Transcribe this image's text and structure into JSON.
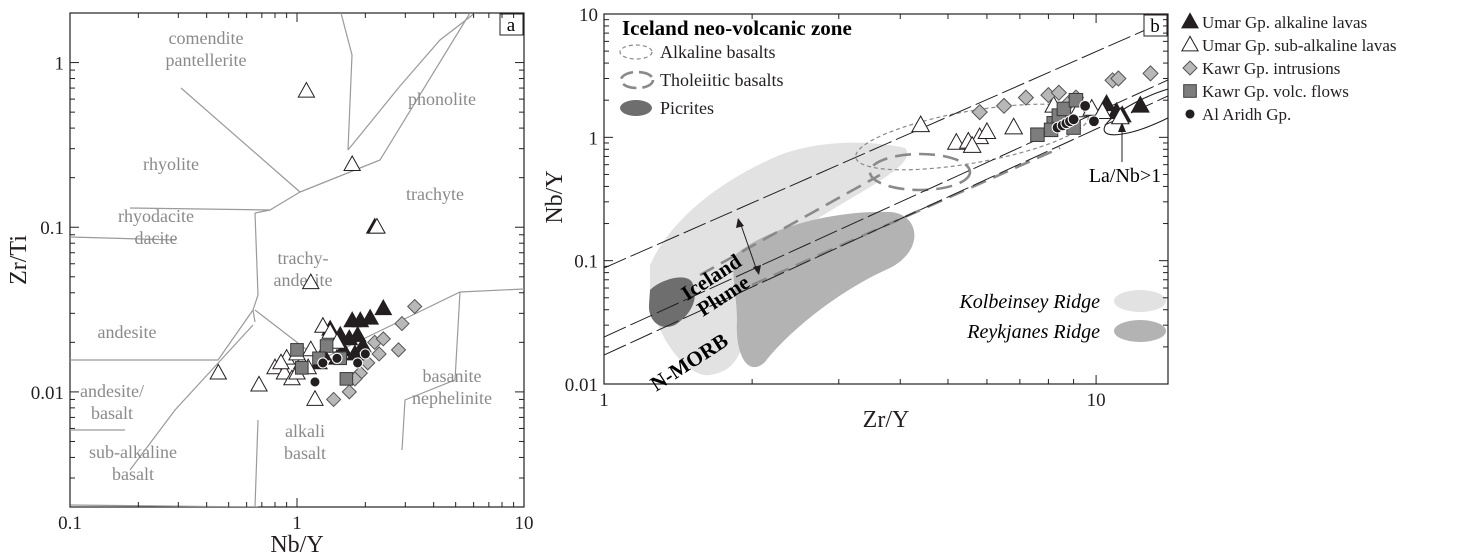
{
  "chart_data": [
    {
      "type": "scatter",
      "panel": "a",
      "xlabel": "Nb/Y",
      "ylabel": "Zr/Ti",
      "xscale": "log",
      "yscale": "log",
      "xlim": [
        0.1,
        10
      ],
      "ylim": [
        0.002,
        2
      ],
      "x_ticks": [
        "0.1",
        "1",
        "10"
      ],
      "y_ticks": [
        "0.01",
        "0.1",
        "1"
      ],
      "fields": [
        {
          "lines": [
            "comendite",
            "pantellerite"
          ]
        },
        {
          "lines": [
            "phonolite"
          ]
        },
        {
          "lines": [
            "rhyolite"
          ]
        },
        {
          "lines": [
            "trachyte"
          ]
        },
        {
          "lines": [
            "rhyodacite",
            "dacite"
          ]
        },
        {
          "lines": [
            "trachy-",
            "andesite"
          ]
        },
        {
          "lines": [
            "andesite"
          ]
        },
        {
          "lines": [
            "basanite",
            "nephelinite"
          ]
        },
        {
          "lines": [
            "andesite/",
            "basalt"
          ]
        },
        {
          "lines": [
            "alkali",
            "basalt"
          ]
        },
        {
          "lines": [
            "sub-alkaline",
            "basalt"
          ]
        }
      ],
      "series": [
        {
          "name": "Umar Gp. alkaline lavas",
          "marker": "triangle-filled",
          "points": [
            [
              2.2,
              0.1
            ],
            [
              1.75,
              0.027
            ],
            [
              1.9,
              0.027
            ],
            [
              2.1,
              0.028
            ],
            [
              2.4,
              0.032
            ],
            [
              1.55,
              0.022
            ],
            [
              1.7,
              0.021
            ],
            [
              1.85,
              0.022
            ],
            [
              1.4,
              0.024
            ],
            [
              1.6,
              0.018
            ],
            [
              1.8,
              0.017
            ],
            [
              1.95,
              0.019
            ],
            [
              1.3,
              0.017
            ],
            [
              1.5,
              0.016
            ],
            [
              1.25,
              0.015
            ]
          ]
        },
        {
          "name": "Umar Gp. sub-alkaline lavas",
          "marker": "triangle-open",
          "points": [
            [
              1.1,
              0.67
            ],
            [
              1.75,
              0.24
            ],
            [
              2.25,
              0.1
            ],
            [
              1.15,
              0.046
            ],
            [
              0.45,
              0.013
            ],
            [
              0.68,
              0.011
            ],
            [
              1.2,
              0.009
            ],
            [
              0.8,
              0.014
            ],
            [
              0.88,
              0.013
            ],
            [
              0.95,
              0.012
            ],
            [
              1.0,
              0.013
            ],
            [
              1.05,
              0.015
            ],
            [
              1.12,
              0.014
            ],
            [
              0.9,
              0.016
            ],
            [
              0.85,
              0.015
            ],
            [
              1.0,
              0.017
            ],
            [
              1.3,
              0.025
            ],
            [
              1.4,
              0.023
            ],
            [
              1.15,
              0.018
            ],
            [
              1.5,
              0.02
            ]
          ]
        },
        {
          "name": "Kawr Gp. intrusions",
          "marker": "diamond",
          "points": [
            [
              3.3,
              0.033
            ],
            [
              2.9,
              0.026
            ],
            [
              2.8,
              0.018
            ],
            [
              2.2,
              0.02
            ],
            [
              2.05,
              0.015
            ],
            [
              1.9,
              0.013
            ],
            [
              1.8,
              0.012
            ],
            [
              1.7,
              0.01
            ],
            [
              1.45,
              0.009
            ],
            [
              2.4,
              0.021
            ],
            [
              2.3,
              0.017
            ]
          ]
        },
        {
          "name": "Kawr Gp. volc. flows",
          "marker": "square",
          "points": [
            [
              1.35,
              0.019
            ],
            [
              1.55,
              0.016
            ],
            [
              1.05,
              0.014
            ],
            [
              1.0,
              0.018
            ],
            [
              1.65,
              0.012
            ],
            [
              1.25,
              0.016
            ]
          ]
        },
        {
          "name": "Al Aridh Gp.",
          "marker": "circle",
          "points": [
            [
              1.2,
              0.0115
            ],
            [
              1.3,
              0.015
            ],
            [
              2.0,
              0.017
            ],
            [
              1.5,
              0.016
            ],
            [
              1.85,
              0.015
            ]
          ]
        }
      ]
    },
    {
      "type": "scatter",
      "panel": "b",
      "xlabel": "Zr/Y",
      "ylabel": "Nb/Y",
      "xscale": "log",
      "yscale": "log",
      "xlim": [
        1,
        14
      ],
      "ylim": [
        0.01,
        10
      ],
      "x_ticks": [
        "1",
        "10"
      ],
      "y_ticks": [
        "0.01",
        "0.1",
        "1",
        "10"
      ],
      "inset_title": "Iceland neo-volcanic zone",
      "inset_legend": [
        "Alkaline basalts",
        "Tholeiitic basalts",
        "Picrites"
      ],
      "annotations": [
        "La/Nb>1",
        "Iceland",
        "Plume",
        "N-MORB"
      ],
      "field_legend": [
        "Kolbeinsey Ridge",
        "Reykjanes Ridge"
      ],
      "series": [
        {
          "name": "Umar Gp. alkaline lavas",
          "marker": "triangle-filled",
          "points": [
            [
              10.5,
              1.85
            ],
            [
              11.0,
              1.6
            ],
            [
              12.3,
              1.8
            ],
            [
              11.3,
              1.5
            ]
          ]
        },
        {
          "name": "Umar Gp. sub-alkaline lavas",
          "marker": "triangle-open",
          "points": [
            [
              4.4,
              1.25
            ],
            [
              5.2,
              0.9
            ],
            [
              5.5,
              0.92
            ],
            [
              5.8,
              1.0
            ],
            [
              6.0,
              1.1
            ],
            [
              5.6,
              0.85
            ],
            [
              6.8,
              1.2
            ],
            [
              8.2,
              1.8
            ],
            [
              8.5,
              1.5
            ],
            [
              9.2,
              1.65
            ],
            [
              9.8,
              1.7
            ],
            [
              10.3,
              1.6
            ],
            [
              11.2,
              1.45
            ]
          ]
        },
        {
          "name": "Kawr Gp. intrusions",
          "marker": "diamond",
          "points": [
            [
              5.8,
              1.6
            ],
            [
              6.5,
              1.8
            ],
            [
              7.2,
              2.1
            ],
            [
              8.0,
              2.2
            ],
            [
              8.4,
              2.3
            ],
            [
              8.8,
              1.9
            ],
            [
              9.1,
              2.1
            ],
            [
              10.8,
              2.9
            ],
            [
              11.1,
              3.0
            ],
            [
              12.9,
              3.3
            ],
            [
              8.6,
              1.55
            ]
          ]
        },
        {
          "name": "Kawr Gp. volc. flows",
          "marker": "square",
          "points": [
            [
              7.6,
              1.05
            ],
            [
              8.2,
              1.3
            ],
            [
              8.4,
              1.5
            ],
            [
              8.6,
              1.7
            ],
            [
              9.0,
              1.2
            ],
            [
              8.1,
              1.15
            ],
            [
              9.1,
              2.0
            ]
          ]
        },
        {
          "name": "Al Aridh Gp.",
          "marker": "circle",
          "points": [
            [
              8.35,
              1.2
            ],
            [
              8.55,
              1.25
            ],
            [
              8.7,
              1.3
            ],
            [
              8.85,
              1.35
            ],
            [
              9.0,
              1.4
            ],
            [
              9.5,
              1.8
            ],
            [
              9.9,
              1.35
            ]
          ]
        }
      ]
    }
  ],
  "legend": [
    {
      "marker": "triangle-filled",
      "label": "Umar Gp. alkaline lavas"
    },
    {
      "marker": "triangle-open",
      "label": "Umar Gp. sub-alkaline lavas"
    },
    {
      "marker": "diamond",
      "label": "Kawr Gp. intrusions"
    },
    {
      "marker": "square",
      "label": "Kawr Gp. volc. flows"
    },
    {
      "marker": "circle",
      "label": "Al Aridh Gp."
    }
  ],
  "colors": {
    "ink": "#231f20",
    "boundary": "#9a9a9a",
    "field_label": "#8a8a8a",
    "diamond_fill": "#b8b8b8",
    "square_fill": "#7d7d7d",
    "kolbeinsey": "#e2e2e2",
    "reykjanes": "#b3b3b3",
    "picrite": "#6e6e6e"
  }
}
